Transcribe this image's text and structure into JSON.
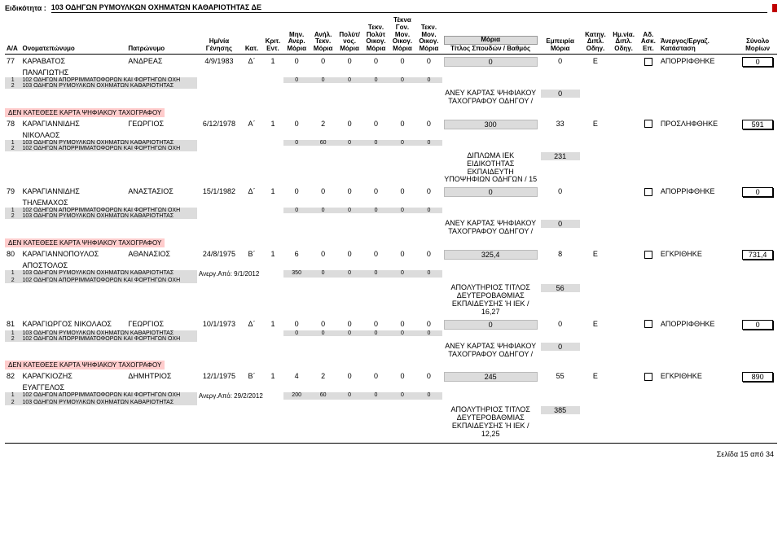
{
  "header": {
    "label": "Ειδικότητα :",
    "value": "103 ΟΔΗΓΩΝ ΡΥΜΟΥΛΚΩΝ ΟΧΗΜΑΤΩΝ ΚΑΘΑΡΙΟΤΗΤΑΣ  ΔΕ"
  },
  "columns": {
    "aa": "Α/Α",
    "name": "Ονοματεπώνυμο",
    "father": "Πατρώνυμο",
    "dob": "Ημ/νία Γένησης",
    "kat": "Κατ.",
    "krit": "Κριτ. Εντ.",
    "c1": "Μην. Ανερ. Μόρια",
    "c2": "Ανήλ. Τεκν. Μόρια",
    "c3": "Πολύτ/ νος. Μόρια",
    "c4": "Τεκν. Πολύτ Οικογ. Μόρια",
    "c5": "Τέκνα Γον. Μον. Οικογ. Μόρια",
    "c6": "Τεκν. Μον. Οικογ. Μόρια",
    "moria": "Μόρια",
    "study": "Τίτλος Σπουδών / Βαθμός",
    "exp": "Εμπειρία Μόρια",
    "dipl1": "Κατηγ. Διπλ. Οδηγ.",
    "dipl2": "Ημ.νία. Διπλ. Οδηγ.",
    "ad": "Αδ. Ασκ. Επ.",
    "status": "Άνεργος/Εργαζ. Κατάσταση",
    "total": "Σύνολο Μορίων"
  },
  "entries": [
    {
      "aa": "77",
      "name1": "ΚΑΡΑΒΑΤΟΣ",
      "name2": "ΠΑΝΑΓΙΩΤΗΣ",
      "father": "ΑΝΔΡΕΑΣ",
      "dob": "4/9/1983",
      "kat": "Δ΄",
      "krit": "1",
      "c1": "0",
      "c2": "0",
      "c3": "0",
      "c4": "0",
      "c5": "0",
      "c6": "0",
      "moria": "0",
      "exp": "0",
      "dipl1": "Ε",
      "status": "ΑΠΟΡΡΙΦΘΗΚΕ",
      "total": "0",
      "subs": [
        {
          "n": "1",
          "t": "102 ΟΔΗΓΩΝ ΑΠΟΡΡΙΜΜΑΤΟΦΟΡΩΝ ΚΑΙ ΦΟΡΤΗΓΩΝ ΟΧΗ"
        },
        {
          "n": "2",
          "t": "103 ΟΔΗΓΩΝ ΡΥΜΟΥΛΚΩΝ ΟΧΗΜΑΤΩΝ ΚΑΘΑΡΙΟΤΗΤΑΣ"
        }
      ],
      "subnote": "",
      "s1": "0",
      "s2": "0",
      "s3": "0",
      "s4": "0",
      "s5": "0",
      "s6": "0",
      "study": "ΑΝΕΥ ΚΑΡΤΑΣ ΨΗΦΙΑΚΟΥ ΤΑΧΟΓΡΑΦΟΥ ΟΔΗΓΟΥ /",
      "studyPts": "0",
      "warn": "ΔΕΝ ΚΑΤΕΘΕΣΕ ΚΑΡΤΑ ΨΗΦΙΑΚΟΥ ΤΑΧΟΓΡΑΦΟΥ"
    },
    {
      "aa": "78",
      "name1": "ΚΑΡΑΓΙΑΝΝΙΔΗΣ",
      "name2": "ΝΙΚΟΛΑΟΣ",
      "father": "ΓΕΩΡΓΙΟΣ",
      "dob": "6/12/1978",
      "kat": "Α΄",
      "krit": "1",
      "c1": "0",
      "c2": "2",
      "c3": "0",
      "c4": "0",
      "c5": "0",
      "c6": "0",
      "moria": "300",
      "exp": "33",
      "dipl1": "Ε",
      "status": "ΠΡΟΣΛΗΦΘΗΚΕ",
      "total": "591",
      "subs": [
        {
          "n": "1",
          "t": "103 ΟΔΗΓΩΝ ΡΥΜΟΥΛΚΩΝ ΟΧΗΜΑΤΩΝ ΚΑΘΑΡΙΟΤΗΤΑΣ"
        },
        {
          "n": "2",
          "t": "102 ΟΔΗΓΩΝ ΑΠΟΡΡΙΜΜΑΤΟΦΟΡΩΝ ΚΑΙ ΦΟΡΤΗΓΩΝ ΟΧΗ"
        }
      ],
      "subnote": "",
      "s1": "0",
      "s2": "60",
      "s3": "0",
      "s4": "0",
      "s5": "0",
      "s6": "0",
      "study": "ΔΙΠΛΩΜΑ ΙΕΚ ΕΙΔΙΚΟΤΗΤΑΣ ΕΚΠΑΙΔΕΥΤΗ ΥΠΟΨΗΦΙΩΝ ΟΔΗΓΩΝ / 15",
      "studyPts": "231",
      "warn": ""
    },
    {
      "aa": "79",
      "name1": "ΚΑΡΑΓΙΑΝΝΙΔΗΣ",
      "name2": "ΤΗΛΕΜΑΧΟΣ",
      "father": "ΑΝΑΣΤΑΣΙΟΣ",
      "dob": "15/1/1982",
      "kat": "Δ΄",
      "krit": "1",
      "c1": "0",
      "c2": "0",
      "c3": "0",
      "c4": "0",
      "c5": "0",
      "c6": "0",
      "moria": "0",
      "exp": "0",
      "dipl1": "",
      "status": "ΑΠΟΡΡΙΦΘΗΚΕ",
      "total": "0",
      "subs": [
        {
          "n": "1",
          "t": "102 ΟΔΗΓΩΝ ΑΠΟΡΡΙΜΜΑΤΟΦΟΡΩΝ ΚΑΙ ΦΟΡΤΗΓΩΝ ΟΧΗ"
        },
        {
          "n": "2",
          "t": "103 ΟΔΗΓΩΝ ΡΥΜΟΥΛΚΩΝ ΟΧΗΜΑΤΩΝ ΚΑΘΑΡΙΟΤΗΤΑΣ"
        }
      ],
      "subnote": "",
      "s1": "0",
      "s2": "0",
      "s3": "0",
      "s4": "0",
      "s5": "0",
      "s6": "0",
      "study": "ΑΝΕΥ ΚΑΡΤΑΣ ΨΗΦΙΑΚΟΥ ΤΑΧΟΓΡΑΦΟΥ ΟΔΗΓΟΥ /",
      "studyPts": "0",
      "warn": "ΔΕΝ ΚΑΤΕΘΕΣΕ ΚΑΡΤΑ ΨΗΦΙΑΚΟΥ ΤΑΧΟΓΡΑΦΟΥ"
    },
    {
      "aa": "80",
      "name1": "ΚΑΡΑΓΙΑΝΝΟΠΟΥΛΟΣ",
      "name2": "ΑΠΟΣΤΟΛΟΣ",
      "father": "ΑΘΑΝΑΣΙΟΣ",
      "dob": "24/8/1975",
      "kat": "Β΄",
      "krit": "1",
      "c1": "6",
      "c2": "0",
      "c3": "0",
      "c4": "0",
      "c5": "0",
      "c6": "0",
      "moria": "325,4",
      "exp": "8",
      "dipl1": "Ε",
      "status": "ΕΓΚΡΙΘΗΚΕ",
      "total": "731,4",
      "subs": [
        {
          "n": "1",
          "t": "103 ΟΔΗΓΩΝ ΡΥΜΟΥΛΚΩΝ ΟΧΗΜΑΤΩΝ ΚΑΘΑΡΙΟΤΗΤΑΣ"
        },
        {
          "n": "2",
          "t": "102 ΟΔΗΓΩΝ ΑΠΟΡΡΙΜΜΑΤΟΦΟΡΩΝ ΚΑΙ ΦΟΡΤΗΓΩΝ ΟΧΗ"
        }
      ],
      "subnote": "Ανεργ.Από: 9/1/2012",
      "s1": "350",
      "s2": "0",
      "s3": "0",
      "s4": "0",
      "s5": "0",
      "s6": "0",
      "study": "ΑΠΟΛΥΤΗΡΙΟΣ ΤΙΤΛΟΣ ΔΕΥΤΕΡΟΒΑΘΜΙΑΣ ΕΚΠΑΙΔΕΥΣΗΣ Ή ΙΕΚ / 16,27",
      "studyPts": "56",
      "warn": ""
    },
    {
      "aa": "81",
      "name1": "ΚΑΡΑΓΙΩΡΓΟΣ  ΝΙΚΟΛΑΟΣ",
      "name2": "",
      "father": "ΓΕΩΡΓΙΟΣ",
      "dob": "10/1/1973",
      "kat": "Δ΄",
      "krit": "1",
      "c1": "0",
      "c2": "0",
      "c3": "0",
      "c4": "0",
      "c5": "0",
      "c6": "0",
      "moria": "0",
      "exp": "0",
      "dipl1": "Ε",
      "status": "ΑΠΟΡΡΙΦΘΗΚΕ",
      "total": "0",
      "subs": [
        {
          "n": "1",
          "t": "103 ΟΔΗΓΩΝ ΡΥΜΟΥΛΚΩΝ ΟΧΗΜΑΤΩΝ ΚΑΘΑΡΙΟΤΗΤΑΣ"
        },
        {
          "n": "2",
          "t": "102 ΟΔΗΓΩΝ ΑΠΟΡΡΙΜΜΑΤΟΦΟΡΩΝ ΚΑΙ ΦΟΡΤΗΓΩΝ ΟΧΗ"
        }
      ],
      "subnote": "",
      "s1": "0",
      "s2": "0",
      "s3": "0",
      "s4": "0",
      "s5": "0",
      "s6": "0",
      "study": "ΑΝΕΥ ΚΑΡΤΑΣ ΨΗΦΙΑΚΟΥ ΤΑΧΟΓΡΑΦΟΥ ΟΔΗΓΟΥ /",
      "studyPts": "0",
      "warn": "ΔΕΝ ΚΑΤΕΘΕΣΕ ΚΑΡΤΑ ΨΗΦΙΑΚΟΥ ΤΑΧΟΓΡΑΦΟΥ"
    },
    {
      "aa": "82",
      "name1": "ΚΑΡΑΓΚΙΟΖΗΣ",
      "name2": "ΕΥΑΓΓΕΛΟΣ",
      "father": "ΔΗΜΗΤΡΙΟΣ",
      "dob": "12/1/1975",
      "kat": "Β΄",
      "krit": "1",
      "c1": "4",
      "c2": "2",
      "c3": "0",
      "c4": "0",
      "c5": "0",
      "c6": "0",
      "moria": "245",
      "exp": "55",
      "dipl1": "Ε",
      "status": "ΕΓΚΡΙΘΗΚΕ",
      "total": "890",
      "subs": [
        {
          "n": "1",
          "t": "102 ΟΔΗΓΩΝ ΑΠΟΡΡΙΜΜΑΤΟΦΟΡΩΝ ΚΑΙ ΦΟΡΤΗΓΩΝ ΟΧΗ"
        },
        {
          "n": "2",
          "t": "103 ΟΔΗΓΩΝ ΡΥΜΟΥΛΚΩΝ ΟΧΗΜΑΤΩΝ ΚΑΘΑΡΙΟΤΗΤΑΣ"
        }
      ],
      "subnote": "Ανεργ.Από: 29/2/2012",
      "s1": "200",
      "s2": "60",
      "s3": "0",
      "s4": "0",
      "s5": "0",
      "s6": "0",
      "study": "ΑΠΟΛΥΤΗΡΙΟΣ ΤΙΤΛΟΣ ΔΕΥΤΕΡΟΒΑΘΜΙΑΣ ΕΚΠΑΙΔΕΥΣΗΣ Ή ΙΕΚ / 12,25",
      "studyPts": "385",
      "warn": ""
    }
  ],
  "footer": "Σελίδα 15 από 34",
  "colw": {
    "aa": 18,
    "name": 120,
    "father": 80,
    "dob": 50,
    "kat": 24,
    "krit": 24,
    "c": 30,
    "moria": 110,
    "exp": 48,
    "dipl1": 32,
    "dipl2": 32,
    "ad": 24,
    "status": 90,
    "total": 44
  }
}
